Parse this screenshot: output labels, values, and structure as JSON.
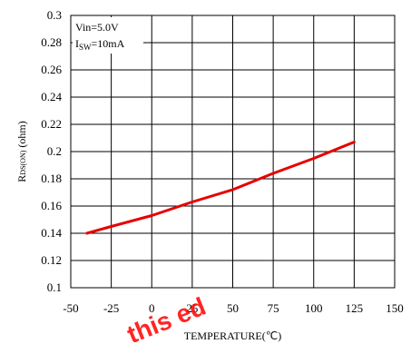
{
  "chart_data": {
    "type": "line",
    "title": "",
    "xlabel": "TEMPERATURE(℃)",
    "ylabel": "R",
    "ylabel_sub": "DS(ON)",
    "ylabel_suffix": " (ohm)",
    "xlim": [
      -50,
      150
    ],
    "ylim": [
      0.1,
      0.3
    ],
    "x_ticks": [
      -50,
      -25,
      0,
      25,
      50,
      75,
      100,
      125,
      150
    ],
    "y_ticks": [
      0.1,
      0.12,
      0.14,
      0.16,
      0.18,
      0.2,
      0.22,
      0.24,
      0.26,
      0.28,
      0.3
    ],
    "x_tick_labels": [
      "-50",
      "-25",
      "0",
      "25",
      "50",
      "75",
      "100",
      "125",
      "150"
    ],
    "y_tick_labels": [
      "0.1",
      "0.12",
      "0.14",
      "0.16",
      "0.18",
      "0.2",
      "0.22",
      "0.24",
      "0.26",
      "0.28",
      "0.3"
    ],
    "grid": true,
    "legend": {
      "placement": "top-left",
      "line1": "Vin=5.0V",
      "line2_main": "I",
      "line2_sub": "SW",
      "line2_rest": "=10mA"
    },
    "series": [
      {
        "color": "#e60000",
        "x": [
          -40,
          -25,
          0,
          25,
          50,
          75,
          100,
          125
        ],
        "y": [
          0.14,
          0.145,
          0.153,
          0.163,
          0.172,
          0.184,
          0.195,
          0.207
        ]
      }
    ]
  },
  "watermark": {
    "text": "this  ed",
    "color": "#ff0000"
  }
}
